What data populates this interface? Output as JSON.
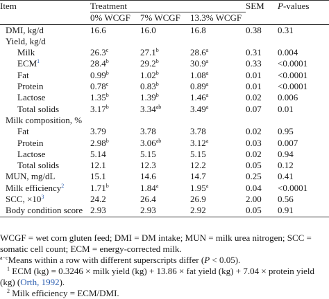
{
  "header": {
    "item": "Item",
    "treatment": "Treatment",
    "sem": "SEM",
    "pvalues": "P-values",
    "pvalues_p": "P",
    "pvalues_rest": "-values",
    "cols": [
      "0% WCGF",
      "7% WCGF",
      "13.3% WCGF"
    ]
  },
  "rows": [
    {
      "label": "DMI, kg/d",
      "indent": false,
      "v": [
        "16.6",
        "16.0",
        "16.8"
      ],
      "s": [
        "",
        "",
        ""
      ],
      "sem": "0.38",
      "p": "0.31"
    },
    {
      "label": "Yield, kg/d",
      "indent": false,
      "v": [
        "",
        "",
        ""
      ],
      "s": [
        "",
        "",
        ""
      ],
      "sem": "",
      "p": ""
    },
    {
      "label": "Milk",
      "indent": true,
      "v": [
        "26.3",
        "27.1",
        "28.6"
      ],
      "s": [
        "c",
        "b",
        "a"
      ],
      "sem": "0.31",
      "p": "0.004"
    },
    {
      "label": "ECM",
      "label_sup": "1",
      "indent": true,
      "v": [
        "28.4",
        "29.2",
        "30.9"
      ],
      "s": [
        "b",
        "b",
        "a"
      ],
      "sem": "0.33",
      "p": "<0.0001"
    },
    {
      "label": "Fat",
      "indent": true,
      "v": [
        "0.99",
        "1.02",
        "1.08"
      ],
      "s": [
        "b",
        "b",
        "a"
      ],
      "sem": "0.01",
      "p": "<0.0001"
    },
    {
      "label": "Protein",
      "indent": true,
      "v": [
        "0.78",
        "0.83",
        "0.89"
      ],
      "s": [
        "c",
        "b",
        "a"
      ],
      "sem": "0.01",
      "p": "<0.0001"
    },
    {
      "label": "Lactose",
      "indent": true,
      "v": [
        "1.35",
        "1.39",
        "1.46"
      ],
      "s": [
        "b",
        "b",
        "a"
      ],
      "sem": "0.02",
      "p": "0.006"
    },
    {
      "label": "Total solids",
      "indent": true,
      "v": [
        "3.17",
        "3.34",
        "3.49"
      ],
      "s": [
        "b",
        "ab",
        "a"
      ],
      "sem": "0.07",
      "p": "0.01"
    },
    {
      "label": "Milk composition, %",
      "indent": false,
      "v": [
        "",
        "",
        ""
      ],
      "s": [
        "",
        "",
        ""
      ],
      "sem": "",
      "p": ""
    },
    {
      "label": "Fat",
      "indent": true,
      "v": [
        "3.79",
        "3.78",
        "3.78"
      ],
      "s": [
        "",
        "",
        ""
      ],
      "sem": "0.02",
      "p": "0.95"
    },
    {
      "label": "Protein",
      "indent": true,
      "v": [
        "2.98",
        "3.06",
        "3.12"
      ],
      "s": [
        "b",
        "ab",
        "a"
      ],
      "sem": "0.03",
      "p": "0.007"
    },
    {
      "label": "Lactose",
      "indent": true,
      "v": [
        "5.14",
        "5.15",
        "5.15"
      ],
      "s": [
        "",
        "",
        ""
      ],
      "sem": "0.02",
      "p": "0.94"
    },
    {
      "label": "Total solids",
      "indent": true,
      "v": [
        "12.1",
        "12.3",
        "12.2"
      ],
      "s": [
        "",
        "",
        ""
      ],
      "sem": "0.05",
      "p": "0.12"
    },
    {
      "label": "MUN, mg/dL",
      "indent": false,
      "v": [
        "15.1",
        "14.6",
        "14.7"
      ],
      "s": [
        "",
        "",
        ""
      ],
      "sem": "0.25",
      "p": "0.41"
    },
    {
      "label": "Milk efficiency",
      "label_sup": "2",
      "indent": false,
      "v": [
        "1.71",
        "1.84",
        "1.95"
      ],
      "s": [
        "b",
        "a",
        "a"
      ],
      "sem": "0.04",
      "p": "<0.0001"
    },
    {
      "label": "SCC, ×10",
      "label_sup": "3",
      "indent": false,
      "v": [
        "24.2",
        "26.4",
        "26.9"
      ],
      "s": [
        "",
        "",
        ""
      ],
      "sem": "2.00",
      "p": "0.56"
    },
    {
      "label": "Body condition score",
      "indent": false,
      "v": [
        "2.93",
        "2.93",
        "2.92"
      ],
      "s": [
        "",
        "",
        ""
      ],
      "sem": "0.05",
      "p": "0.91"
    }
  ],
  "notes": {
    "abbrev_1": "WCGF = wet corn gluten feed; DMI = DM intake; MUN = milk urea nitrogen; SCC =",
    "abbrev_2": "somatic cell count; ECM = energy-corrected milk.",
    "means_sup": "a−c",
    "means_text_before": "Means within a row with different superscripts differ (",
    "means_p": "P",
    "means_text_after": " < 0.05).",
    "fn1_marker": "1",
    "fn1_text": "ECM (kg) = 0.3246 × milk yield (kg) + 13.86 × fat yield (kg) + 7.04 × protein yield",
    "fn1_cont_before": "(kg) (",
    "fn1_link": "Orth, 1992",
    "fn1_cont_after": ").",
    "fn2_marker": "2",
    "fn2_text": "Milk efficiency = ECM/DMI."
  },
  "colors": {
    "link": "#2a5db0",
    "text": "#1a1a1a",
    "rule": "#333333"
  }
}
